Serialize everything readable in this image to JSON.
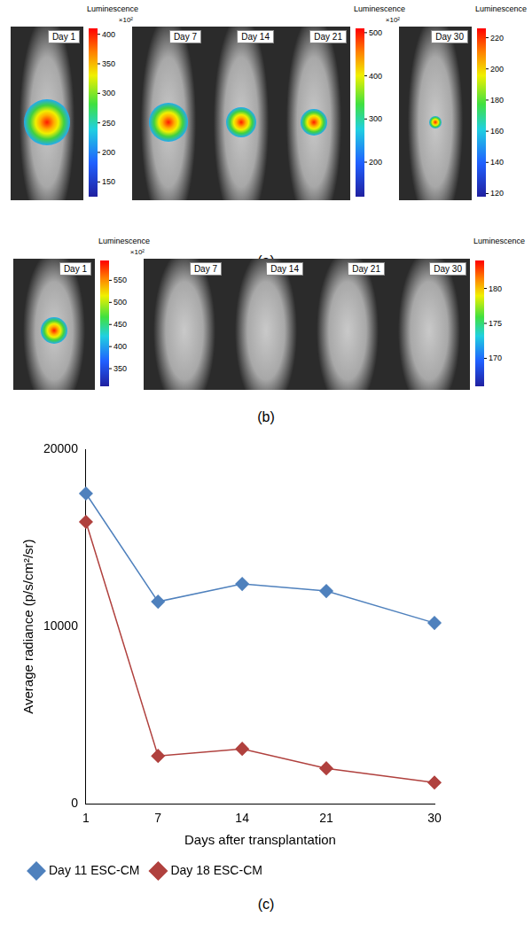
{
  "image_panels": [
    {
      "label": "(a)",
      "groups": [
        {
          "days": [
            "Day 1"
          ],
          "colorbar": {
            "title": "Luminescence",
            "multiplier": "×10²",
            "range": [
              125,
              410
            ],
            "ticks": [
              150,
              200,
              250,
              300,
              350,
              400
            ]
          }
        },
        {
          "days": [
            "Day 7",
            "Day 14",
            "Day 21"
          ],
          "colorbar": {
            "title": "Luminescence",
            "multiplier": "×10²",
            "range": [
              120,
              510
            ],
            "ticks": [
              200,
              300,
              400,
              500
            ]
          }
        },
        {
          "days": [
            "Day 30"
          ],
          "colorbar": {
            "title": "Luminescence",
            "range": [
              118,
              226
            ],
            "ticks": [
              120,
              140,
              160,
              180,
              200,
              220
            ]
          }
        }
      ]
    },
    {
      "label": "(b)",
      "groups": [
        {
          "days": [
            "Day 1"
          ],
          "colorbar": {
            "title": "Luminescence",
            "multiplier": "×10²",
            "range": [
              310,
              595
            ],
            "ticks": [
              350,
              400,
              450,
              500,
              550
            ]
          }
        },
        {
          "days": [
            "Day 7",
            "Day 14",
            "Day 21",
            "Day 30"
          ],
          "colorbar": {
            "title": "Luminescence",
            "range": [
              166,
              184
            ],
            "ticks": [
              170,
              175,
              180
            ]
          }
        }
      ]
    }
  ],
  "chart_data": {
    "type": "line",
    "panel_label": "(c)",
    "x": [
      1,
      7,
      14,
      21,
      30
    ],
    "series": [
      {
        "name": "Day 11 ESC-CM",
        "color": "#4f81bd",
        "marker": "diamond",
        "values": [
          17500,
          11400,
          12400,
          12000,
          10200
        ]
      },
      {
        "name": "Day 18 ESC-CM",
        "color": "#b0413e",
        "marker": "diamond",
        "values": [
          15900,
          2700,
          3100,
          2000,
          1200
        ]
      }
    ],
    "xlim": [
      1,
      30
    ],
    "xticks": [
      1,
      7,
      14,
      21,
      30
    ],
    "ylim": [
      0,
      20000
    ],
    "yticks": [
      0,
      10000,
      20000
    ],
    "x_label": "Days after transplantation",
    "y_label": "Average radiance (p/s/cm²/sr)",
    "grid": false,
    "legend": "bottom left"
  }
}
